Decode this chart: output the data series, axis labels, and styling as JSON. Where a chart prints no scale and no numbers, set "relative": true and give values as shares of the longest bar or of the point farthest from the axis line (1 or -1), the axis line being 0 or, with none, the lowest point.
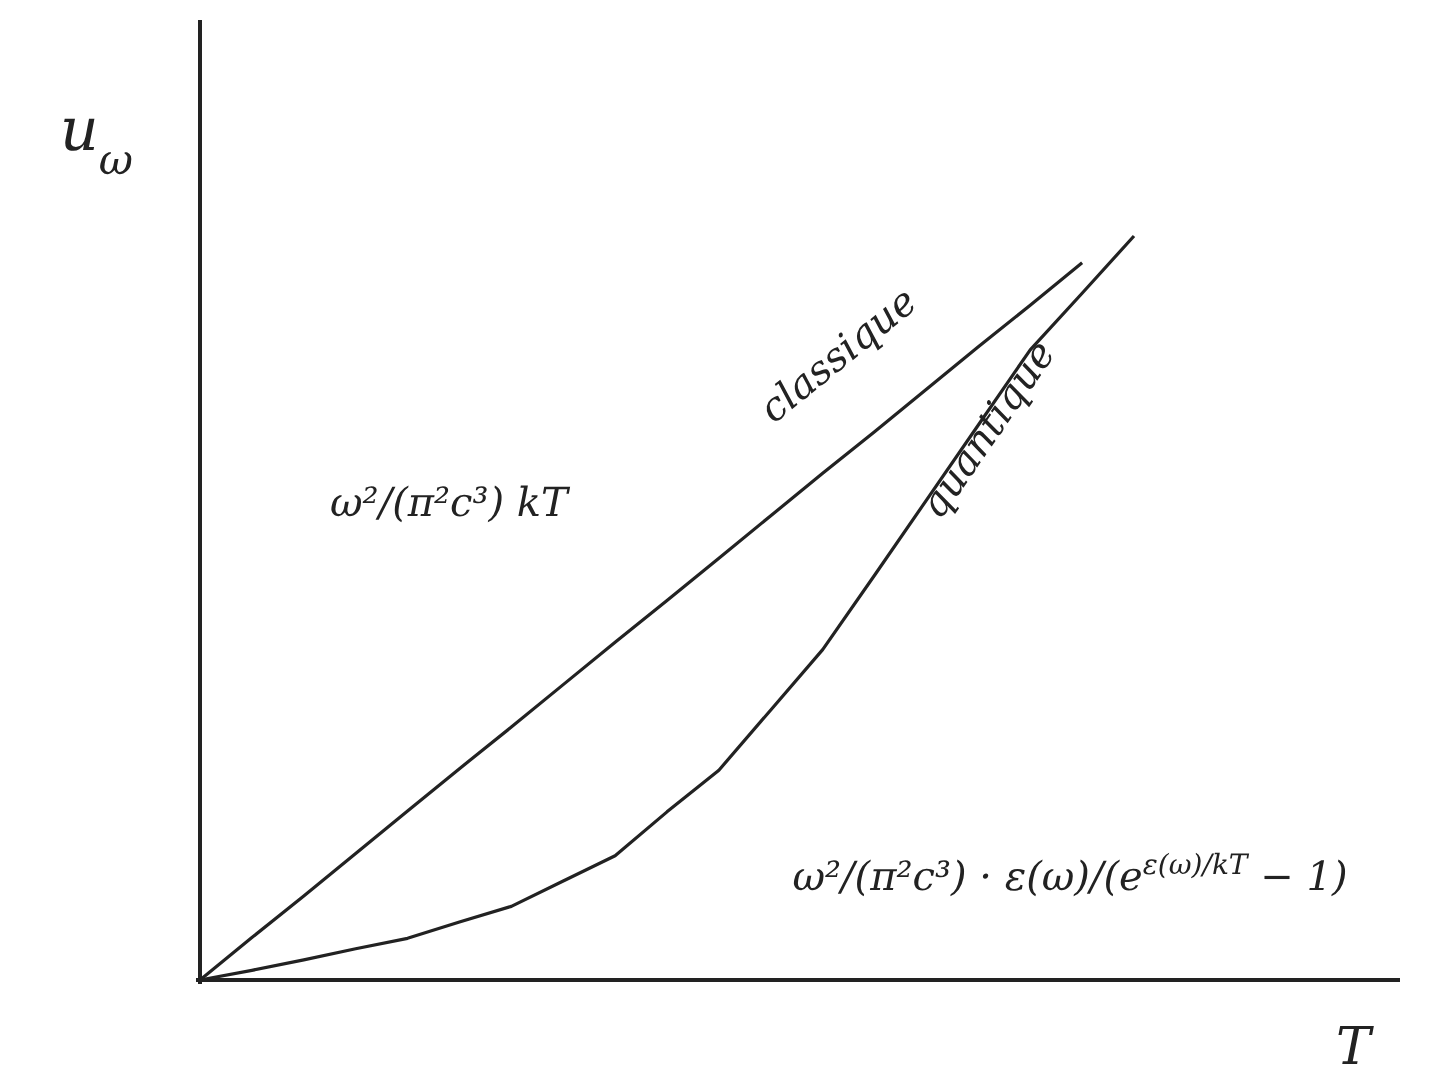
{
  "chart_data": {
    "type": "line",
    "relative": true,
    "xlabel": "T",
    "ylabel": "u$_{ω}$",
    "marker": "none",
    "line_style": "solid",
    "categories": [
      null,
      null,
      null,
      null,
      null,
      null,
      null,
      null,
      null,
      null,
      null,
      null,
      null,
      null,
      null,
      null,
      null,
      null,
      null
    ],
    "series": [
      {
        "name": "classique",
        "color": "#222222",
        "values": [
          0,
          0.057,
          0.113,
          0.17,
          0.227,
          0.284,
          0.34,
          0.397,
          0.454,
          0.51,
          0.567,
          0.624,
          0.681,
          0.737,
          0.794,
          0.851,
          0.907,
          0.964,
          null
        ]
      },
      {
        "name": "quantique",
        "color": "#222222",
        "values": [
          0,
          0.013,
          0.027,
          0.042,
          0.056,
          0.078,
          0.099,
          0.133,
          0.167,
          0.226,
          0.282,
          0.363,
          0.444,
          0.544,
          0.645,
          0.746,
          0.847,
          0.923,
          1
        ]
      }
    ],
    "annotations": [
      "ω²/(π²c³) kT",
      "ω²/(π²c³) · ε(ω)/(e$^{ε(ω)/kT}$ − 1)"
    ]
  }
}
